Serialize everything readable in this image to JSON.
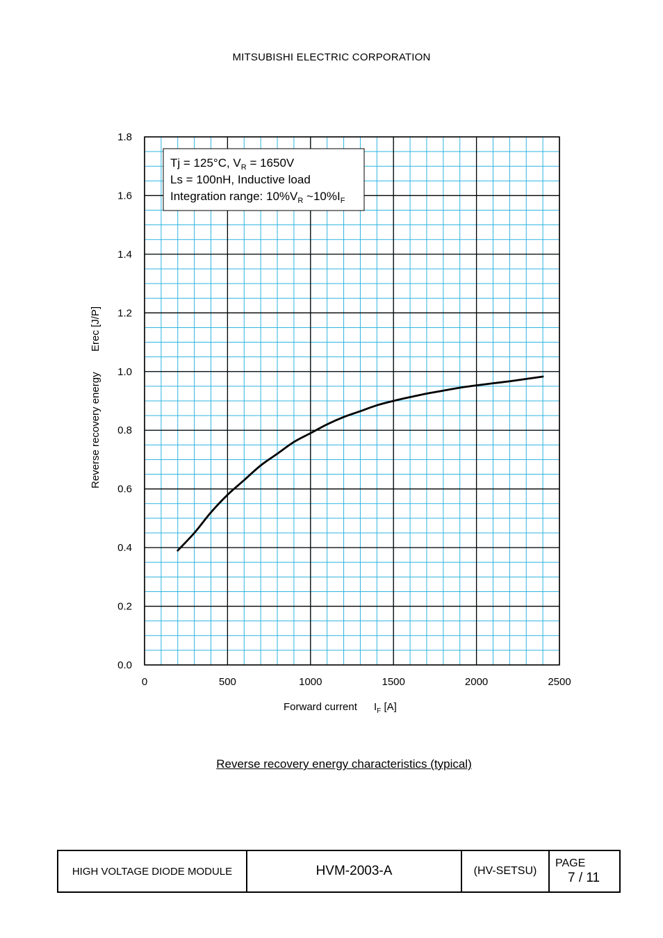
{
  "header": {
    "company": "MITSUBISHI ELECTRIC CORPORATION"
  },
  "chart_data": {
    "type": "line",
    "title": "",
    "xlabel": "Forward current",
    "xlabel_symbol": "I",
    "xlabel_sub": "F",
    "xlabel_unit": "[A]",
    "ylabel": "Reverse recovery energy",
    "ylabel_symbol": "Erec [J/P]",
    "xlim": [
      0,
      2500
    ],
    "ylim": [
      0,
      1.8
    ],
    "xticks": [
      0,
      500,
      1000,
      1500,
      2000,
      2500
    ],
    "xtick_labels": [
      "0",
      "500",
      "1000",
      "1500",
      "2000",
      "2500"
    ],
    "yticks": [
      0,
      0.2,
      0.4,
      0.6,
      0.8,
      1.0,
      1.2,
      1.4,
      1.6,
      1.8
    ],
    "ytick_labels": [
      "0.0",
      "0.2",
      "0.4",
      "0.6",
      "0.8",
      "1.0",
      "1.2",
      "1.4",
      "1.6",
      "1.8"
    ],
    "grid": true,
    "conditions": [
      [
        "Tj = 125°C, V",
        "R",
        " = 1650V"
      ],
      [
        "Ls = 100nH, Inductive load"
      ],
      [
        "Integration range: 10%V",
        "R",
        " ~10%I",
        "F",
        ""
      ]
    ],
    "series": [
      {
        "x": [
          200,
          300,
          400,
          500,
          600,
          700,
          800,
          900,
          1000,
          1100,
          1200,
          1300,
          1400,
          1500,
          1600,
          1700,
          1800,
          1900,
          2000,
          2100,
          2200,
          2300,
          2400
        ],
        "y": [
          0.39,
          0.45,
          0.52,
          0.58,
          0.63,
          0.68,
          0.72,
          0.76,
          0.79,
          0.82,
          0.845,
          0.865,
          0.885,
          0.9,
          0.913,
          0.925,
          0.935,
          0.945,
          0.953,
          0.96,
          0.967,
          0.975,
          0.983
        ]
      }
    ]
  },
  "caption": "Reverse recovery energy characteristics (typical)",
  "footer": {
    "product": "HIGH VOLTAGE DIODE MODULE",
    "doc_number": "HVM-2003-A",
    "code": "(HV-SETSU)",
    "page_label": "PAGE",
    "page_number": "7 / 11"
  }
}
